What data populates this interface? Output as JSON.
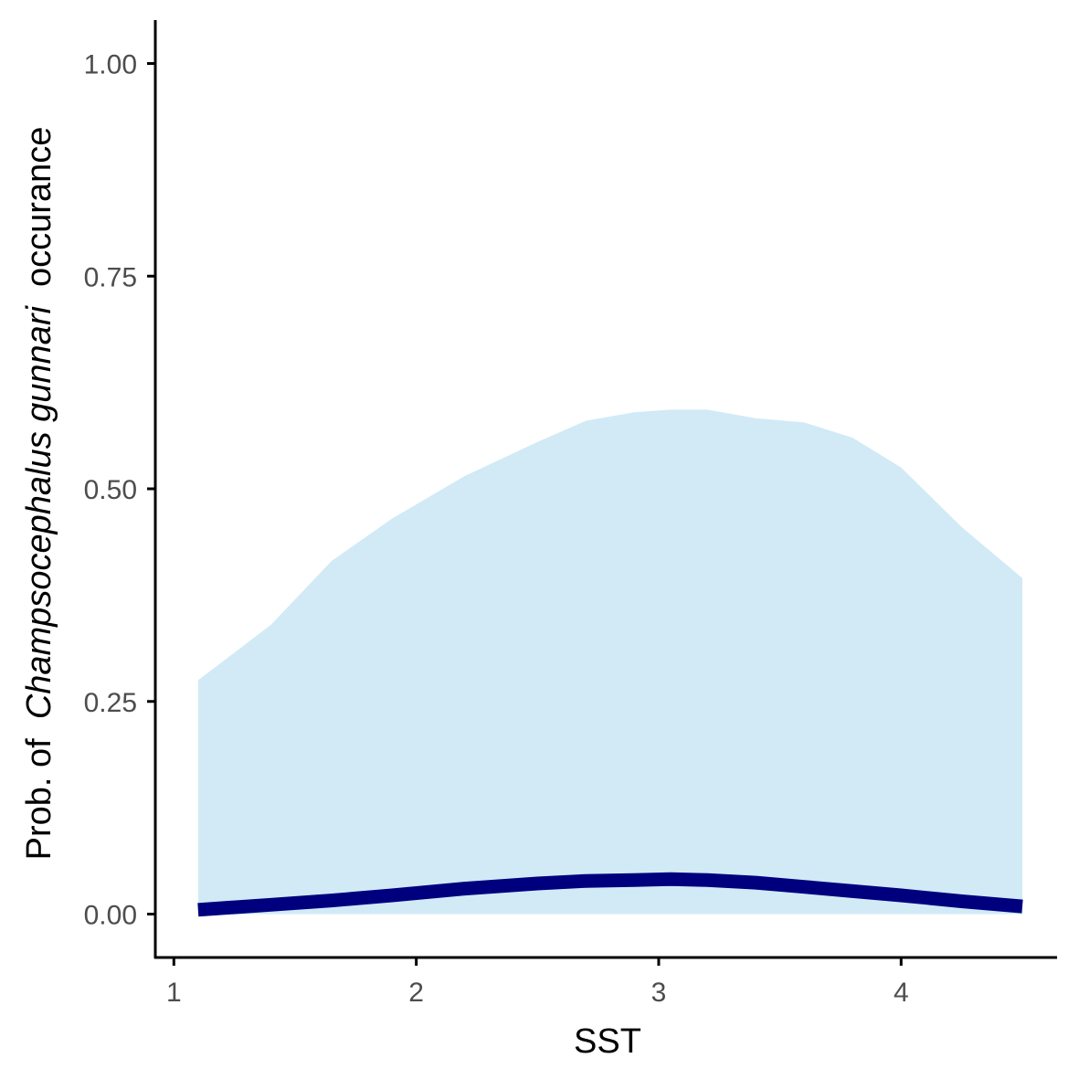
{
  "chart_data": {
    "type": "line",
    "title": "",
    "xlabel": "SST",
    "ylabel_parts": [
      "Prob. of",
      "Champsocephalus gunnari",
      "occurance"
    ],
    "xlim": [
      0.95,
      4.65
    ],
    "ylim": [
      -0.05,
      1.05
    ],
    "xticks": [
      1,
      2,
      3,
      4
    ],
    "yticks": [
      0.0,
      0.25,
      0.5,
      0.75,
      1.0
    ],
    "ytick_labels": [
      "0.00",
      "0.25",
      "0.50",
      "0.75",
      "1.00"
    ],
    "grid": false,
    "legend": "none",
    "series": [
      {
        "x": [
          1.1,
          1.4,
          1.65,
          1.9,
          2.2,
          2.5,
          2.7,
          2.9,
          3.05,
          3.2,
          3.4,
          3.6,
          3.8,
          4.0,
          4.25,
          4.5
        ],
        "y": [
          0.005,
          0.011,
          0.016,
          0.022,
          0.03,
          0.036,
          0.039,
          0.04,
          0.041,
          0.04,
          0.037,
          0.032,
          0.027,
          0.022,
          0.015,
          0.009
        ],
        "lower": [
          0.0,
          0.0,
          0.0,
          0.0,
          0.0,
          0.0,
          0.0,
          0.0,
          0.0,
          0.0,
          0.0,
          0.0,
          0.0,
          0.0,
          0.0,
          0.0
        ],
        "upper": [
          0.275,
          0.34,
          0.415,
          0.465,
          0.515,
          0.555,
          0.58,
          0.59,
          0.593,
          0.593,
          0.583,
          0.578,
          0.56,
          0.525,
          0.455,
          0.395
        ]
      }
    ],
    "colors": {
      "line": "#00007f",
      "ribbon": "#d1eaf6",
      "axis": "#000000",
      "tick_text": "#4d4d4d"
    }
  }
}
